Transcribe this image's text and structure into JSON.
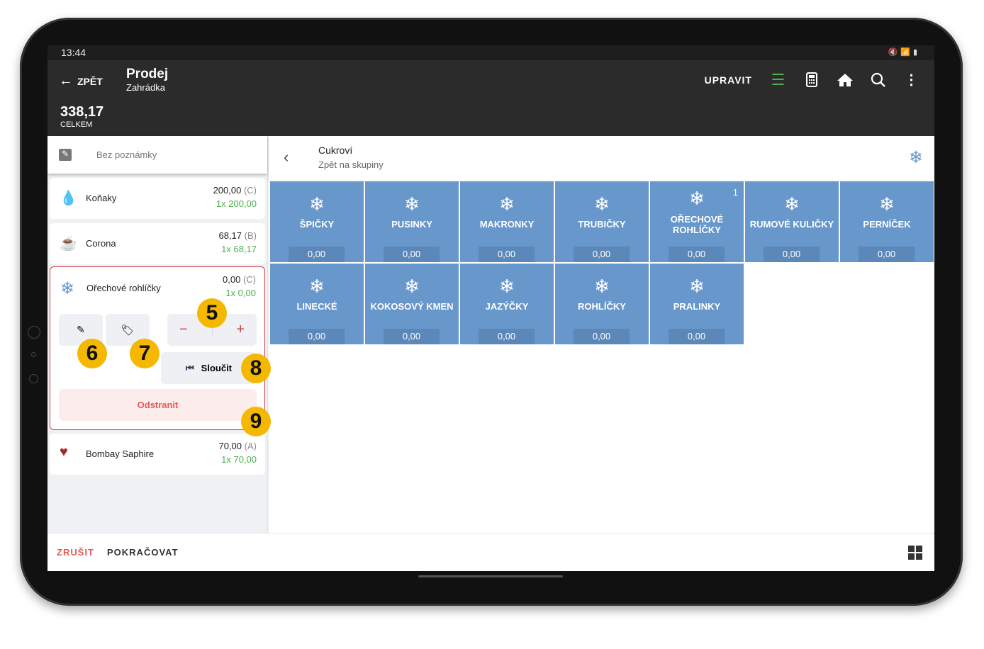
{
  "status": {
    "time": "13:44",
    "icons": [
      "mute-icon",
      "wifi-icon",
      "battery-icon"
    ]
  },
  "appbar": {
    "back_label": "ZPĚT",
    "title": "Prodej",
    "subtitle": "Zahrádka",
    "total": "338,17",
    "total_label": "CELKEM",
    "edit_label": "UPRAVIT",
    "accent": "#4caf50"
  },
  "order": {
    "note": "Bez poznámky",
    "items": [
      {
        "name": "Koňaky",
        "price": "200,00",
        "tax": "(C)",
        "qty": "1x 200,00",
        "icon": "drop-icon"
      },
      {
        "name": "Corona",
        "price": "68,17",
        "tax": "(B)",
        "qty": "1x 68,17",
        "icon": "cup-icon"
      },
      {
        "name": "Ořechové rohlíčky",
        "price": "0,00",
        "tax": "(C)",
        "qty": "1x 0,00",
        "icon": "snowflake-icon"
      },
      {
        "name": "Bombay Saphire",
        "price": "70,00",
        "tax": "(A)",
        "qty": "1x 70,00",
        "icon": "heart-icon"
      }
    ],
    "merge_label": "Sloučit",
    "remove_label": "Odstranit",
    "badges": [
      "5",
      "6",
      "7",
      "8",
      "9"
    ]
  },
  "products": {
    "group": "Cukroví",
    "back_to_groups": "Zpět na skupiny",
    "tile_color": "#6897cc",
    "tiles": [
      {
        "name": "ŠPIČKY",
        "price": "0,00"
      },
      {
        "name": "PUSINKY",
        "price": "0,00"
      },
      {
        "name": "MAKRONKY",
        "price": "0,00"
      },
      {
        "name": "TRUBIČKY",
        "price": "0,00"
      },
      {
        "name": "OŘECHOVÉ ROHLÍČKY",
        "price": "0,00",
        "count": "1"
      },
      {
        "name": "RUMOVÉ KULIČKY",
        "price": "0,00"
      },
      {
        "name": "PERNÍČEK",
        "price": "0,00"
      },
      {
        "name": "LINECKÉ",
        "price": "0,00"
      },
      {
        "name": "KOKOSOVÝ KMEN",
        "price": "0,00"
      },
      {
        "name": "JAZÝČKY",
        "price": "0,00"
      },
      {
        "name": "ROHLÍČKY",
        "price": "0,00"
      },
      {
        "name": "PRALINKY",
        "price": "0,00"
      }
    ]
  },
  "bottom": {
    "cancel_label": "ZRUŠIT",
    "continue_label": "POKRAČOVAT"
  }
}
